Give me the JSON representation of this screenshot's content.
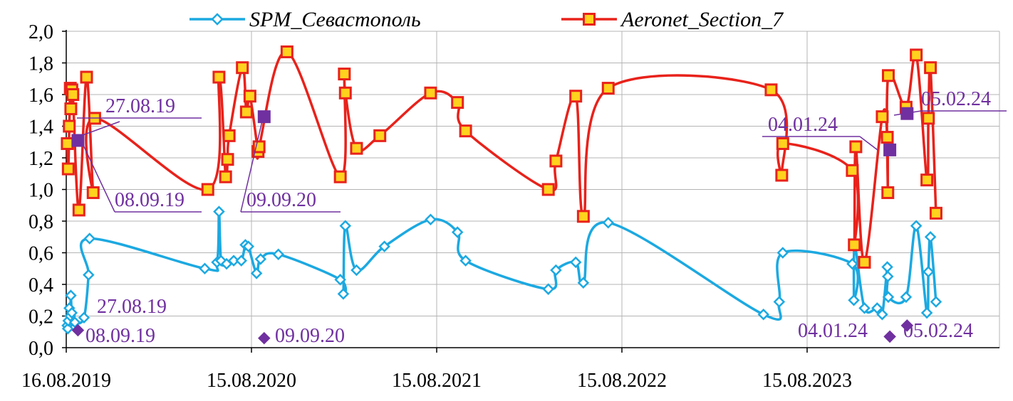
{
  "chart_data": {
    "type": "line",
    "x_axis": {
      "type": "date",
      "range": [
        "2019-08-16",
        "2024-05-10"
      ],
      "ticks": [
        {
          "date": "2019-08-16",
          "label": "16.08.2019"
        },
        {
          "date": "2020-08-15",
          "label": "15.08.2020"
        },
        {
          "date": "2021-08-15",
          "label": "15.08.2021"
        },
        {
          "date": "2022-08-15",
          "label": "15.08.2022"
        },
        {
          "date": "2023-08-15",
          "label": "15.08.2023"
        }
      ]
    },
    "y_axis": {
      "range": [
        0,
        2.0
      ],
      "tick_labels": [
        "0,0",
        "0,2",
        "0,4",
        "0,6",
        "0,8",
        "1,0",
        "1,2",
        "1,4",
        "1,6",
        "1,8",
        "2,0"
      ]
    },
    "grid": {
      "horizontal": true,
      "vertical": true
    },
    "legend": {
      "placement": "top"
    },
    "series": [
      {
        "name": "SPM_Севастополь",
        "color": "#1CA9E1",
        "marker": "diamond",
        "points": [
          [
            "2019-08-18",
            0.14
          ],
          [
            "2019-08-19",
            0.12
          ],
          [
            "2019-08-20",
            0.17
          ],
          [
            "2019-08-22",
            0.25
          ],
          [
            "2019-08-24",
            0.2
          ],
          [
            "2019-08-25",
            0.33
          ],
          [
            "2019-08-27",
            0.22
          ],
          [
            "2019-09-02",
            0.16
          ],
          [
            "2019-09-20",
            0.19
          ],
          [
            "2019-09-29",
            0.46
          ],
          [
            "2019-10-01",
            0.69
          ],
          [
            "2020-05-15",
            0.5
          ],
          [
            "2020-06-08",
            0.54
          ],
          [
            "2020-06-12",
            0.86
          ],
          [
            "2020-06-16",
            0.55
          ],
          [
            "2020-06-27",
            0.53
          ],
          [
            "2020-07-11",
            0.55
          ],
          [
            "2020-07-26",
            0.55
          ],
          [
            "2020-08-03",
            0.65
          ],
          [
            "2020-08-09",
            0.64
          ],
          [
            "2020-08-25",
            0.47
          ],
          [
            "2020-09-02",
            0.56
          ],
          [
            "2020-10-07",
            0.59
          ],
          [
            "2021-02-06",
            0.43
          ],
          [
            "2021-02-12",
            0.34
          ],
          [
            "2021-02-16",
            0.77
          ],
          [
            "2021-03-10",
            0.49
          ],
          [
            "2021-05-04",
            0.64
          ],
          [
            "2021-08-03",
            0.81
          ],
          [
            "2021-09-25",
            0.73
          ],
          [
            "2021-10-11",
            0.55
          ],
          [
            "2022-03-23",
            0.37
          ],
          [
            "2022-04-07",
            0.49
          ],
          [
            "2022-05-16",
            0.54
          ],
          [
            "2022-05-31",
            0.41
          ],
          [
            "2022-07-19",
            0.79
          ],
          [
            "2023-05-21",
            0.21
          ],
          [
            "2023-06-21",
            0.29
          ],
          [
            "2023-06-28",
            0.6
          ],
          [
            "2023-11-12",
            0.53
          ],
          [
            "2023-11-15",
            0.3
          ],
          [
            "2023-11-17",
            0.64
          ],
          [
            "2023-12-06",
            0.25
          ],
          [
            "2023-12-31",
            0.25
          ],
          [
            "2024-01-10",
            0.21
          ],
          [
            "2024-01-20",
            0.51
          ],
          [
            "2024-01-21",
            0.45
          ],
          [
            "2024-01-22",
            0.32
          ],
          [
            "2024-02-26",
            0.32
          ],
          [
            "2024-03-17",
            0.77
          ],
          [
            "2024-04-07",
            0.22
          ],
          [
            "2024-04-10",
            0.48
          ],
          [
            "2024-04-14",
            0.7
          ],
          [
            "2024-04-25",
            0.29
          ]
        ]
      },
      {
        "name": "Aeronet_Section_7",
        "color": "#E8221B",
        "marker": "square",
        "marker_fill": "#FFD21E",
        "points": [
          [
            "2019-08-18",
            1.29
          ],
          [
            "2019-08-20",
            1.13
          ],
          [
            "2019-08-22",
            1.4
          ],
          [
            "2019-08-24",
            1.64
          ],
          [
            "2019-08-25",
            1.51
          ],
          [
            "2019-08-27",
            1.63
          ],
          [
            "2019-08-29",
            1.6
          ],
          [
            "2019-09-10",
            0.87
          ],
          [
            "2019-09-25",
            1.71
          ],
          [
            "2019-10-08",
            0.98
          ],
          [
            "2019-10-11",
            1.45
          ],
          [
            "2020-05-21",
            1.0
          ],
          [
            "2020-06-12",
            1.71
          ],
          [
            "2020-06-25",
            1.08
          ],
          [
            "2020-06-29",
            1.19
          ],
          [
            "2020-07-02",
            1.34
          ],
          [
            "2020-07-28",
            1.77
          ],
          [
            "2020-08-05",
            1.49
          ],
          [
            "2020-08-12",
            1.59
          ],
          [
            "2020-08-28",
            1.24
          ],
          [
            "2020-08-30",
            1.27
          ],
          [
            "2020-10-24",
            1.87
          ],
          [
            "2021-02-06",
            1.08
          ],
          [
            "2021-02-14",
            1.73
          ],
          [
            "2021-02-16",
            1.61
          ],
          [
            "2021-03-10",
            1.26
          ],
          [
            "2021-04-25",
            1.34
          ],
          [
            "2021-08-03",
            1.61
          ],
          [
            "2021-09-25",
            1.55
          ],
          [
            "2021-10-11",
            1.37
          ],
          [
            "2022-03-23",
            1.0
          ],
          [
            "2022-04-07",
            1.18
          ],
          [
            "2022-05-16",
            1.59
          ],
          [
            "2022-05-31",
            0.83
          ],
          [
            "2022-07-19",
            1.64
          ],
          [
            "2023-06-05",
            1.63
          ],
          [
            "2023-06-26",
            1.09
          ],
          [
            "2023-06-28",
            1.29
          ],
          [
            "2023-11-12",
            1.12
          ],
          [
            "2023-11-16",
            0.65
          ],
          [
            "2023-11-19",
            1.27
          ],
          [
            "2023-12-06",
            0.54
          ],
          [
            "2024-01-10",
            1.46
          ],
          [
            "2024-01-20",
            1.33
          ],
          [
            "2024-01-21",
            0.98
          ],
          [
            "2024-01-22",
            1.72
          ],
          [
            "2024-02-26",
            1.52
          ],
          [
            "2024-03-17",
            1.85
          ],
          [
            "2024-04-07",
            1.06
          ],
          [
            "2024-04-10",
            1.45
          ],
          [
            "2024-04-14",
            1.77
          ],
          [
            "2024-04-25",
            0.85
          ]
        ]
      }
    ],
    "highlights": {
      "color": "#7030A0",
      "aeronet_points": [
        [
          "2019-09-08",
          1.31
        ],
        [
          "2020-09-09",
          1.46
        ],
        [
          "2024-01-25",
          1.25
        ],
        [
          "2024-02-28",
          1.48
        ]
      ],
      "spm_points": [
        [
          "2019-09-08",
          0.11
        ],
        [
          "2020-09-09",
          0.06
        ],
        [
          "2024-01-25",
          0.07
        ],
        [
          "2024-02-28",
          0.14
        ]
      ]
    },
    "annotations": [
      {
        "text": "27.08.19",
        "group": "aeronet"
      },
      {
        "text": "08.09.19",
        "group": "aeronet"
      },
      {
        "text": "09.09.20",
        "group": "aeronet"
      },
      {
        "text": "04.01.24",
        "group": "aeronet"
      },
      {
        "text": "05.02.24",
        "group": "aeronet"
      },
      {
        "text": "27.08.19",
        "group": "spm"
      },
      {
        "text": "08.09.19",
        "group": "spm"
      },
      {
        "text": "09.09.20",
        "group": "spm"
      },
      {
        "text": "04.01.24",
        "group": "spm"
      },
      {
        "text": "05.02.24",
        "group": "spm"
      }
    ]
  }
}
